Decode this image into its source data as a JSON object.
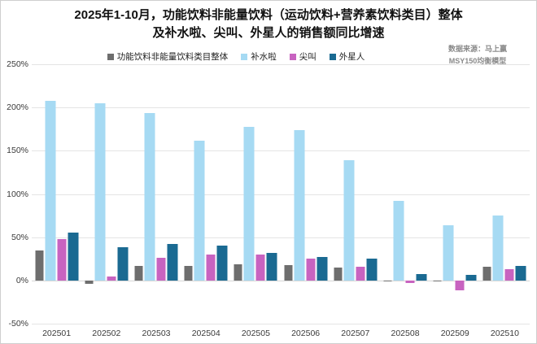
{
  "title": {
    "line1": "2025年1-10月，功能饮料非能量饮料（运动饮料+营养素饮料类目）整体",
    "line2": "及补水啦、尖叫、外星人的销售额同比增速"
  },
  "source": {
    "line1": "数据来源：马上赢",
    "line2": "MSY150均衡模型"
  },
  "chart_data": {
    "type": "bar",
    "title": "2025年1-10月，功能饮料非能量饮料（运动饮料+营养素饮料类目）整体及补水啦、尖叫、外星人的销售额同比增速",
    "categories": [
      "202501",
      "202502",
      "202503",
      "202504",
      "202505",
      "202506",
      "202507",
      "202508",
      "202509",
      "202510"
    ],
    "series": [
      {
        "name": "功能饮料非能量饮料类目整体",
        "color": "#6e6e6e",
        "values": [
          35,
          -4,
          17,
          17,
          19,
          18,
          15,
          -1,
          -1,
          16
        ]
      },
      {
        "name": "补水啦",
        "color": "#a6daf3",
        "values": [
          208,
          205,
          194,
          162,
          178,
          174,
          139,
          92,
          64,
          75
        ]
      },
      {
        "name": "尖叫",
        "color": "#c863c0",
        "values": [
          48,
          5,
          26,
          30,
          30,
          25,
          16,
          -3,
          -11,
          13
        ]
      },
      {
        "name": "外星人",
        "color": "#1a6a92",
        "values": [
          55,
          38,
          42,
          40,
          32,
          27,
          25,
          7,
          6,
          17
        ]
      }
    ],
    "xlabel": "",
    "ylabel": "",
    "yticks": [
      -50,
      0,
      50,
      100,
      150,
      200,
      250
    ],
    "ytick_format": "percent",
    "ylim": [
      -50,
      250
    ],
    "grid": true,
    "legend_position": "top"
  }
}
